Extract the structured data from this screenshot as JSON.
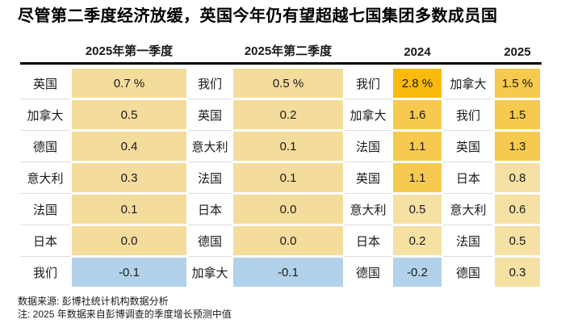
{
  "title": "尽管第二季度经济放缓，英国今年仍有望超越七国集团多数成员国",
  "footer": {
    "source": "数据来源: 彭博社统计机构数据分析",
    "note": "注: 2025 年数据来自彭博调查的季度增长预测中值"
  },
  "chart_data": {
    "type": "heatmap",
    "title": "尽管第二季度经济放缓，英国今年仍有望超越七国集团多数成员国",
    "unit": "%",
    "grid": false,
    "legend_position": "none",
    "palette": {
      "pos": "#F4DC9C",
      "hot1": "#F5E1A4",
      "hot2": "#F6CA4E",
      "hot3": "#FBBB0E",
      "neg": "#B1D2EA"
    },
    "groups": [
      {
        "header": "2025年第一季度",
        "rows": [
          {
            "country": "英国",
            "value": "0.7 %",
            "number": 0.7,
            "level": "pos"
          },
          {
            "country": "加拿大",
            "value": "0.5",
            "number": 0.5,
            "level": "pos"
          },
          {
            "country": "德国",
            "value": "0.4",
            "number": 0.4,
            "level": "pos"
          },
          {
            "country": "意大利",
            "value": "0.3",
            "number": 0.3,
            "level": "pos"
          },
          {
            "country": "法国",
            "value": "0.1",
            "number": 0.1,
            "level": "pos"
          },
          {
            "country": "日本",
            "value": "0.0",
            "number": 0.0,
            "level": "pos"
          },
          {
            "country": "我们",
            "value": "-0.1",
            "number": -0.1,
            "level": "neg"
          }
        ]
      },
      {
        "header": "2025年第二季度",
        "rows": [
          {
            "country": "我们",
            "value": "0.5 %",
            "number": 0.5,
            "level": "pos"
          },
          {
            "country": "英国",
            "value": "0.2",
            "number": 0.2,
            "level": "pos"
          },
          {
            "country": "意大利",
            "value": "0.1",
            "number": 0.1,
            "level": "pos"
          },
          {
            "country": "法国",
            "value": "0.1",
            "number": 0.1,
            "level": "pos"
          },
          {
            "country": "日本",
            "value": "0.0",
            "number": 0.0,
            "level": "pos"
          },
          {
            "country": "德国",
            "value": "0.0",
            "number": 0.0,
            "level": "pos"
          },
          {
            "country": "加拿大",
            "value": "-0.1",
            "number": -0.1,
            "level": "neg"
          }
        ]
      },
      {
        "header": "2024",
        "rows": [
          {
            "country": "我们",
            "value": "2.8 %",
            "number": 2.8,
            "level": "hot3"
          },
          {
            "country": "加拿大",
            "value": "1.6",
            "number": 1.6,
            "level": "hot2"
          },
          {
            "country": "法国",
            "value": "1.1",
            "number": 1.1,
            "level": "hot2"
          },
          {
            "country": "英国",
            "value": "1.1",
            "number": 1.1,
            "level": "hot2"
          },
          {
            "country": "意大利",
            "value": "0.5",
            "number": 0.5,
            "level": "hot1"
          },
          {
            "country": "日本",
            "value": "0.2",
            "number": 0.2,
            "level": "hot1"
          },
          {
            "country": "德国",
            "value": "-0.2",
            "number": -0.2,
            "level": "neg"
          }
        ]
      },
      {
        "header": "2025",
        "rows": [
          {
            "country": "加拿大",
            "value": "1.5 %",
            "number": 1.5,
            "level": "hot2"
          },
          {
            "country": "我们",
            "value": "1.5",
            "number": 1.5,
            "level": "hot2"
          },
          {
            "country": "英国",
            "value": "1.3",
            "number": 1.3,
            "level": "hot2"
          },
          {
            "country": "日本",
            "value": "0.8",
            "number": 0.8,
            "level": "hot1"
          },
          {
            "country": "意大利",
            "value": "0.6",
            "number": 0.6,
            "level": "hot1"
          },
          {
            "country": "法国",
            "value": "0.5",
            "number": 0.5,
            "level": "hot1"
          },
          {
            "country": "德国",
            "value": "0.3",
            "number": 0.3,
            "level": "hot1"
          }
        ]
      }
    ]
  }
}
